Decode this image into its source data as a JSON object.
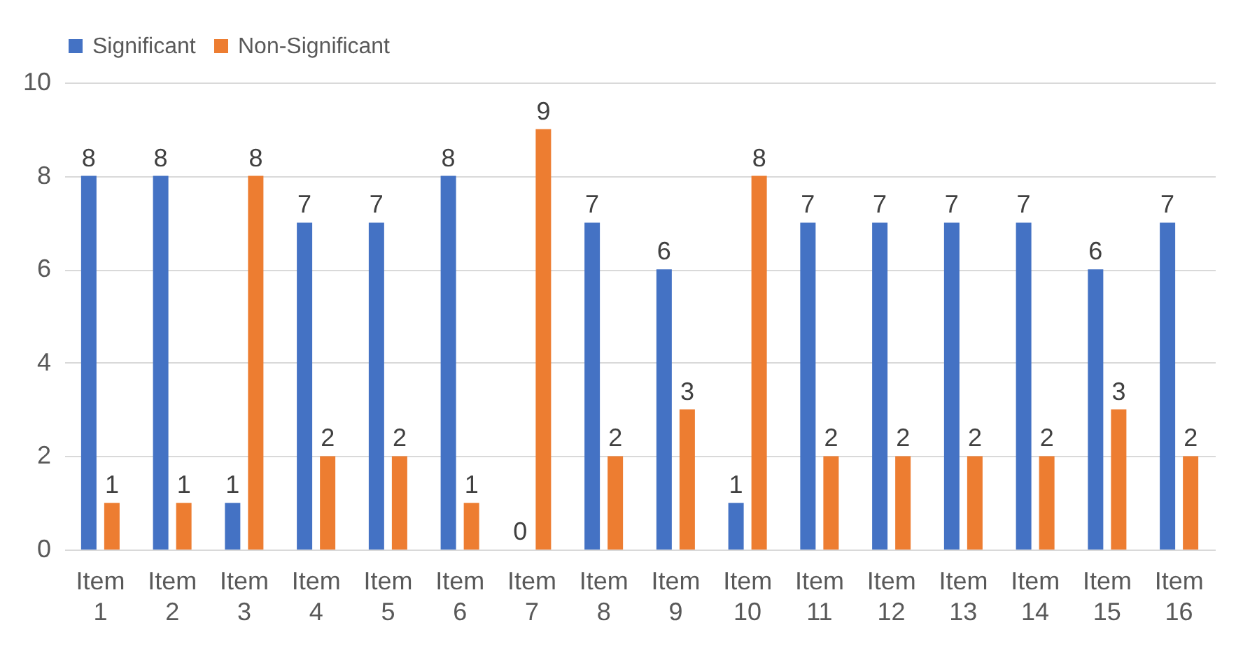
{
  "chart_data": {
    "type": "bar",
    "categories": [
      "Item 1",
      "Item 2",
      "Item 3",
      "Item 4",
      "Item 5",
      "Item 6",
      "Item 7",
      "Item 8",
      "Item 9",
      "Item 10",
      "Item 11",
      "Item 12",
      "Item 13",
      "Item 14",
      "Item 15",
      "Item 16"
    ],
    "series": [
      {
        "name": "Significant",
        "color": "#4472c4",
        "values": [
          8,
          8,
          1,
          7,
          7,
          8,
          0,
          7,
          6,
          1,
          7,
          7,
          7,
          7,
          6,
          7
        ]
      },
      {
        "name": "Non-Significant",
        "color": "#ed7d31",
        "values": [
          1,
          1,
          8,
          2,
          2,
          1,
          9,
          2,
          3,
          8,
          2,
          2,
          2,
          2,
          3,
          2
        ]
      }
    ],
    "ylim": [
      0,
      10
    ],
    "yticks": [
      0,
      2,
      4,
      6,
      8,
      10
    ],
    "grid": "y",
    "legend": "top",
    "data_labels": true
  }
}
